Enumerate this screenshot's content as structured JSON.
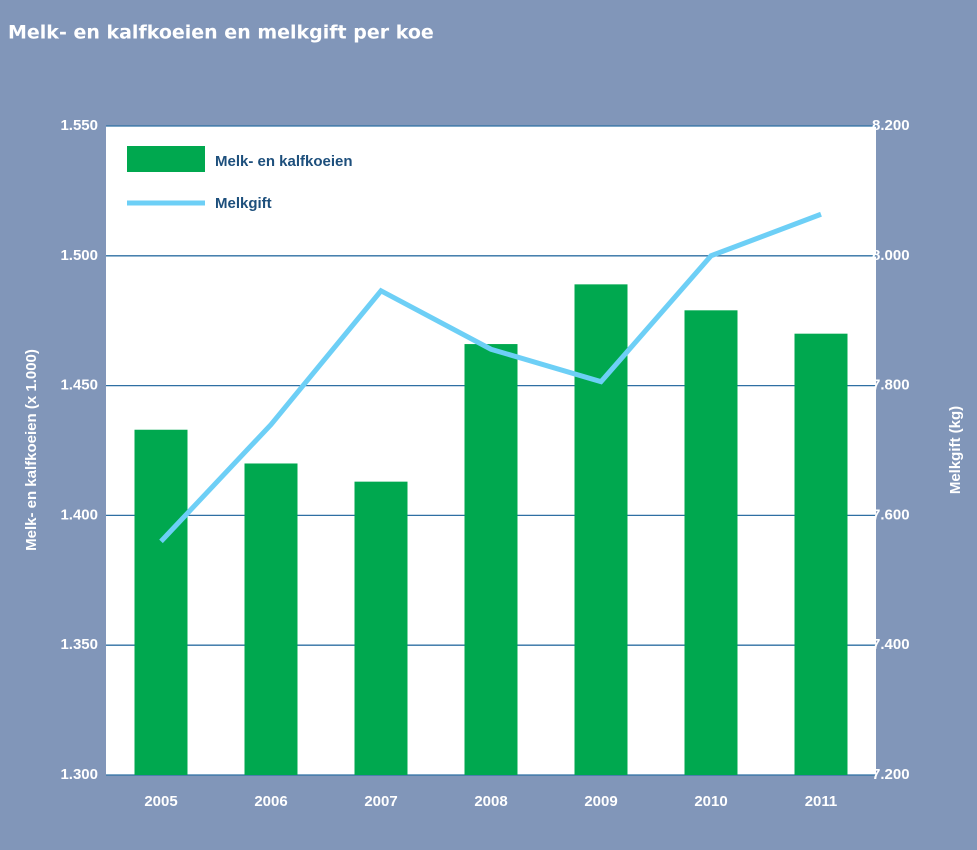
{
  "chart_data": {
    "type": "bar_line",
    "title": "Melk- en kalfkoeien en melkgift per koe",
    "y_label": "Melk- en kalfkoeien (x 1.000)",
    "y2_label": "Melkgift (kg)",
    "categories": [
      "2005",
      "2006",
      "2007",
      "2008",
      "2009",
      "2010",
      "2011"
    ],
    "series": [
      {
        "name": "Melk- en kalfkoeien",
        "type": "bar",
        "color": "#00a84f",
        "values": [
          1433,
          1420,
          1413,
          1466,
          1489,
          1479,
          1470
        ]
      },
      {
        "name": "Melkgift",
        "type": "line",
        "axis": "y2",
        "color": "#6dcff6",
        "values": [
          7560,
          7740,
          7946,
          7856,
          7806,
          8000,
          8064
        ]
      }
    ],
    "ylim": [
      1300,
      1550
    ],
    "yticks": [
      {
        "value": 1300,
        "label": "1.300"
      },
      {
        "value": 1350,
        "label": "1.350"
      },
      {
        "value": 1400,
        "label": "1.400"
      },
      {
        "value": 1450,
        "label": "1.450"
      },
      {
        "value": 1500,
        "label": "1.500"
      },
      {
        "value": 1550,
        "label": "1.550"
      }
    ],
    "y2lim": [
      7200,
      8200
    ],
    "y2ticks": [
      {
        "value": 7200,
        "label": "7.200"
      },
      {
        "value": 7400,
        "label": "7.400"
      },
      {
        "value": 7600,
        "label": "7.600"
      },
      {
        "value": 7800,
        "label": "7.800"
      },
      {
        "value": 8000,
        "label": "8.000"
      },
      {
        "value": 8200,
        "label": "8.200"
      }
    ],
    "grid": true,
    "legend": "top-left"
  }
}
